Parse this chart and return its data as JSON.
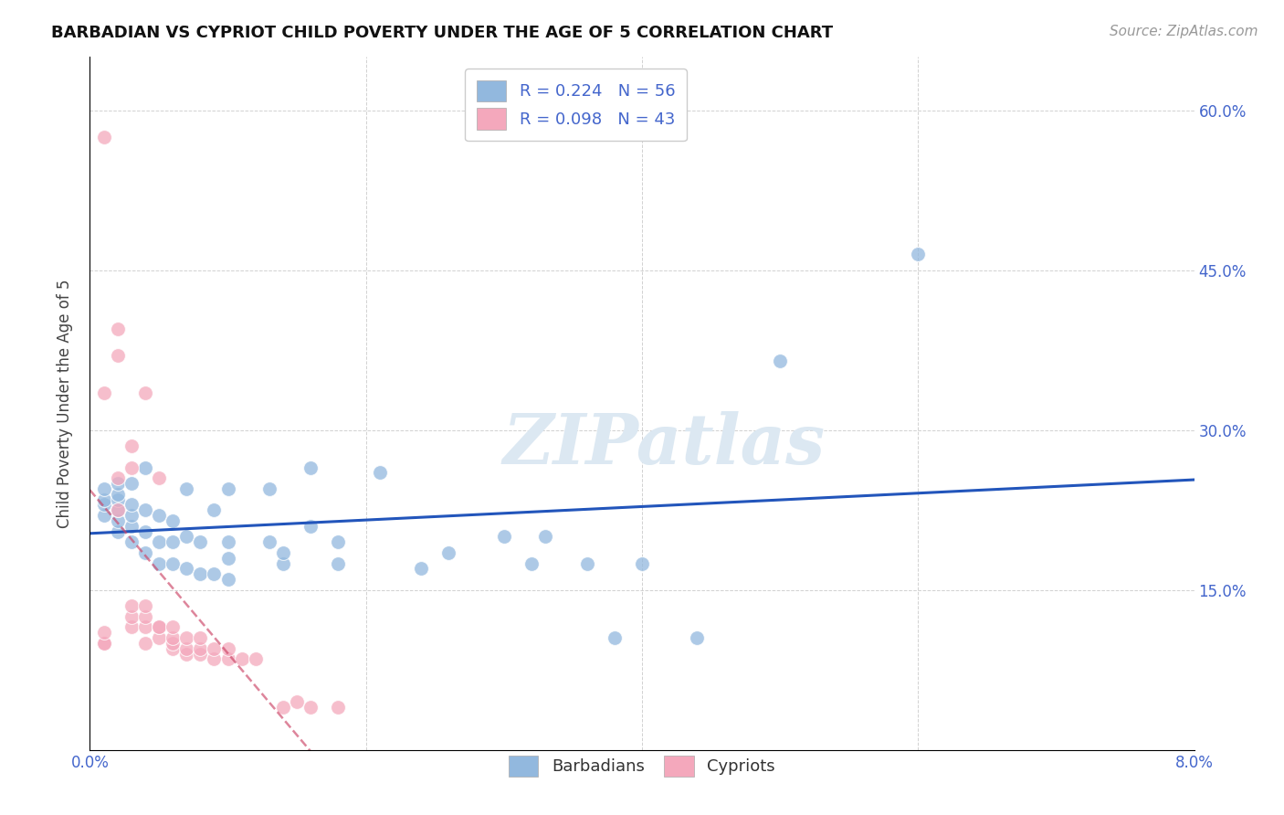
{
  "title": "BARBADIAN VS CYPRIOT CHILD POVERTY UNDER THE AGE OF 5 CORRELATION CHART",
  "source": "Source: ZipAtlas.com",
  "ylabel": "Child Poverty Under the Age of 5",
  "xlim": [
    0.0,
    0.08
  ],
  "ylim": [
    0.0,
    0.65
  ],
  "xtick_positions": [
    0.0,
    0.02,
    0.04,
    0.06,
    0.08
  ],
  "xtick_labels": [
    "0.0%",
    "",
    "",
    "",
    "8.0%"
  ],
  "ytick_positions": [
    0.0,
    0.15,
    0.3,
    0.45,
    0.6
  ],
  "ytick_labels": [
    "",
    "15.0%",
    "30.0%",
    "45.0%",
    "60.0%"
  ],
  "blue_color": "#92b8de",
  "pink_color": "#f4a8bc",
  "line_blue_color": "#2255bb",
  "line_pink_color": "#cc4466",
  "watermark_text": "ZIPatlas",
  "barbadian_x": [
    0.001,
    0.001,
    0.001,
    0.001,
    0.002,
    0.002,
    0.002,
    0.002,
    0.002,
    0.002,
    0.003,
    0.003,
    0.003,
    0.003,
    0.003,
    0.004,
    0.004,
    0.004,
    0.004,
    0.005,
    0.005,
    0.005,
    0.006,
    0.006,
    0.006,
    0.007,
    0.007,
    0.007,
    0.008,
    0.008,
    0.009,
    0.009,
    0.01,
    0.01,
    0.01,
    0.01,
    0.013,
    0.013,
    0.014,
    0.014,
    0.016,
    0.016,
    0.018,
    0.018,
    0.021,
    0.024,
    0.026,
    0.03,
    0.032,
    0.033,
    0.036,
    0.038,
    0.04,
    0.044,
    0.05,
    0.06
  ],
  "barbadian_y": [
    0.22,
    0.23,
    0.235,
    0.245,
    0.205,
    0.215,
    0.225,
    0.235,
    0.24,
    0.25,
    0.195,
    0.21,
    0.22,
    0.23,
    0.25,
    0.185,
    0.205,
    0.225,
    0.265,
    0.175,
    0.195,
    0.22,
    0.175,
    0.195,
    0.215,
    0.17,
    0.2,
    0.245,
    0.165,
    0.195,
    0.165,
    0.225,
    0.16,
    0.18,
    0.195,
    0.245,
    0.195,
    0.245,
    0.175,
    0.185,
    0.21,
    0.265,
    0.175,
    0.195,
    0.26,
    0.17,
    0.185,
    0.2,
    0.175,
    0.2,
    0.175,
    0.105,
    0.175,
    0.105,
    0.365,
    0.465
  ],
  "cypriot_x": [
    0.001,
    0.001,
    0.001,
    0.001,
    0.001,
    0.002,
    0.002,
    0.002,
    0.002,
    0.003,
    0.003,
    0.003,
    0.003,
    0.003,
    0.004,
    0.004,
    0.004,
    0.004,
    0.004,
    0.005,
    0.005,
    0.005,
    0.005,
    0.006,
    0.006,
    0.006,
    0.006,
    0.007,
    0.007,
    0.007,
    0.008,
    0.008,
    0.008,
    0.009,
    0.009,
    0.01,
    0.01,
    0.011,
    0.012,
    0.014,
    0.015,
    0.016,
    0.018
  ],
  "cypriot_y": [
    0.575,
    0.335,
    0.1,
    0.1,
    0.11,
    0.37,
    0.395,
    0.225,
    0.255,
    0.265,
    0.285,
    0.115,
    0.125,
    0.135,
    0.1,
    0.115,
    0.125,
    0.135,
    0.335,
    0.105,
    0.115,
    0.115,
    0.255,
    0.095,
    0.1,
    0.105,
    0.115,
    0.09,
    0.095,
    0.105,
    0.09,
    0.095,
    0.105,
    0.085,
    0.095,
    0.085,
    0.095,
    0.085,
    0.085,
    0.04,
    0.045,
    0.04,
    0.04
  ]
}
